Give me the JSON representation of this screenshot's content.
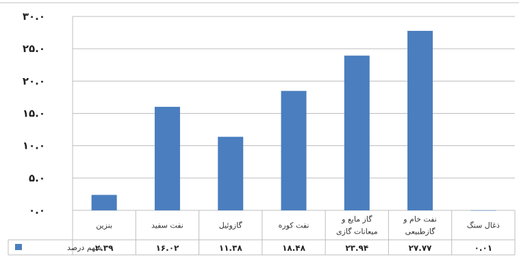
{
  "chart_data": {
    "type": "bar",
    "categories": [
      [
        "بنزین"
      ],
      [
        "نفت سفید"
      ],
      [
        "گازوئیل"
      ],
      [
        "نفت کوره"
      ],
      [
        "گاز مایع و",
        "میعانات گازی"
      ],
      [
        "نفت خام و",
        "گازطبیعی"
      ],
      [
        "ذغال سنگ"
      ]
    ],
    "values": [
      2.39,
      16.02,
      11.38,
      18.48,
      23.94,
      27.77,
      0.01
    ],
    "value_labels": [
      "۲.۳۹",
      "۱۶.۰۲",
      "۱۱.۳۸",
      "۱۸.۴۸",
      "۲۳.۹۴",
      "۲۷.۷۷",
      "۰.۰۱"
    ],
    "ylim": [
      0,
      30
    ],
    "y_ticks": [
      0,
      5,
      10,
      15,
      20,
      25,
      30
    ],
    "y_tick_labels": [
      "۰.۰",
      "۵.۰",
      "۱۰.۰",
      "۱۵.۰",
      "۲۰.۰",
      "۲۵.۰",
      "۳۰.۰"
    ],
    "series_name": "سهم درصد",
    "bar_color": "#4a7ebf",
    "grid": true,
    "legend": "data-table"
  }
}
